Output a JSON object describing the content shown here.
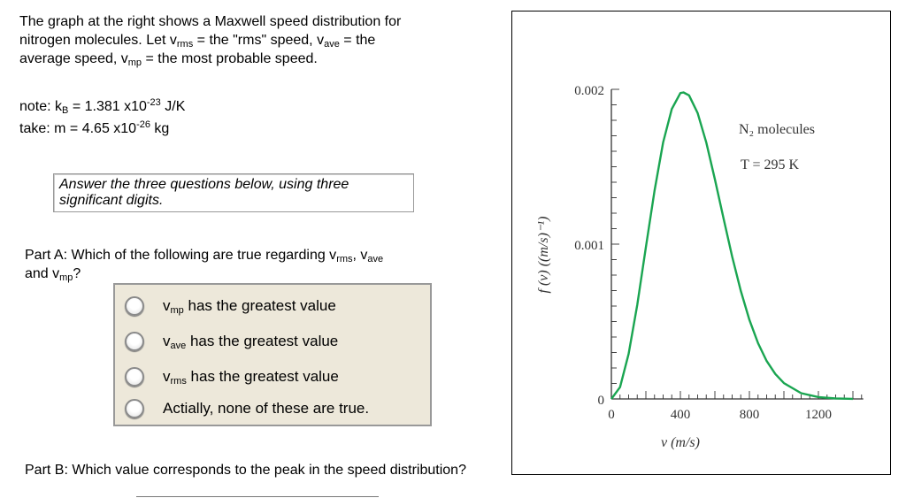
{
  "intro": {
    "line1": "The graph at the right shows a Maxwell speed distribution for",
    "line2a": "nitrogen molecules. Let v",
    "rms": "rms",
    "line2b": " = the \"rms\" speed, v",
    "ave": "ave",
    "line2c": " = the",
    "line3a": "average speed, v",
    "mp": "mp",
    "line3b": " = the most probable speed."
  },
  "note": {
    "a": "note: k",
    "B": "B",
    "b": " = 1.381 x10",
    "exp1": "-23",
    "c": " J/K",
    "d": "take: m = 4.65 x10",
    "exp2": "-26",
    "e": " kg"
  },
  "hint": "Answer the three questions below, using three significant digits.",
  "partA": {
    "label": "Part A",
    "a": ": Which of the following are true regarding v",
    "rms": "rms",
    "b": ", v",
    "ave": "ave",
    "c": "and v",
    "mp": "mp",
    "d": "?"
  },
  "options": [
    {
      "v": "v",
      "sub": "mp",
      "text": " has the greatest value"
    },
    {
      "v": "v",
      "sub": "ave",
      "text": " has the greatest value"
    },
    {
      "v": "v",
      "sub": "rms",
      "text": " has the greatest value"
    },
    {
      "v": "",
      "sub": "",
      "text": "Actially, none of these are true."
    }
  ],
  "partB": {
    "label": "Part B",
    "a": ": Which value corresponds to the peak in the speed distribution?"
  },
  "chart_data": {
    "type": "line",
    "xlabel": "v (m/s)",
    "ylabel": "f (v) ((m/s)⁻¹)",
    "xlim": [
      0,
      1460
    ],
    "ylim": [
      0,
      0.002
    ],
    "xticks": [
      "0",
      "400",
      "800",
      "1200"
    ],
    "yticks": [
      "0",
      "0.001",
      "0.002"
    ],
    "annotations": [
      "N₂ molecules",
      "T = 295 K"
    ],
    "color": "#1aa551",
    "series": [
      {
        "x": [
          0,
          50,
          100,
          150,
          200,
          250,
          300,
          350,
          400,
          418,
          450,
          500,
          550,
          600,
          650,
          700,
          750,
          800,
          850,
          900,
          950,
          1000,
          1100,
          1200,
          1300,
          1400
        ],
        "y": [
          0,
          7.58e-05,
          0.000291,
          0.000609,
          0.00098,
          0.001346,
          0.001657,
          0.001873,
          0.001976,
          0.00198,
          0.001961,
          0.001847,
          0.001656,
          0.001419,
          0.001166,
          0.00092,
          0.000698,
          0.000511,
          0.00036,
          0.000245,
          0.000161,
          0.000102,
          3.73e-05,
          1.2e-05,
          3.4e-06,
          8e-07
        ]
      }
    ]
  }
}
